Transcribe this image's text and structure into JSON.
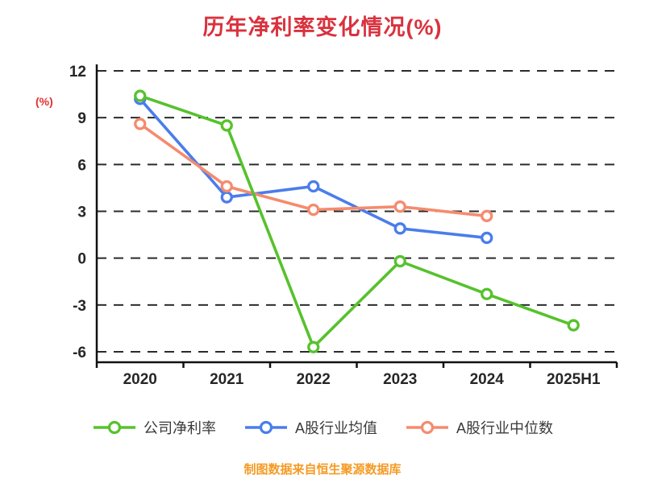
{
  "title": "历年净利率变化情况(%)",
  "y_axis_label": "(%)",
  "footer": "制图数据来自恒生聚源数据库",
  "colors": {
    "title": "#D9323E",
    "y_axis_label": "#E03131",
    "footer": "#F59A23",
    "grid": "#2B2B2B",
    "axis": "#111111"
  },
  "chart_data": {
    "type": "line",
    "title": "历年净利率变化情况(%)",
    "ylabel": "(%)",
    "xlabel": "",
    "categories": [
      "2020",
      "2021",
      "2022",
      "2023",
      "2024",
      "2025H1"
    ],
    "series": [
      {
        "name": "公司净利率",
        "color": "#56C22D",
        "values": [
          10.4,
          8.5,
          -5.7,
          -0.2,
          -2.3,
          -4.3
        ]
      },
      {
        "name": "A股行业均值",
        "color": "#4A7DEB",
        "values": [
          10.2,
          3.9,
          4.6,
          1.9,
          1.3,
          null
        ]
      },
      {
        "name": "A股行业中位数",
        "color": "#F58B6E",
        "values": [
          8.6,
          4.6,
          3.1,
          3.3,
          2.7,
          null
        ]
      }
    ],
    "ylim": [
      -6,
      12
    ],
    "yticks": [
      12,
      9,
      6,
      3,
      0,
      -3,
      -6
    ],
    "grid": true,
    "legend_position": "bottom",
    "marker": "open-circle"
  }
}
